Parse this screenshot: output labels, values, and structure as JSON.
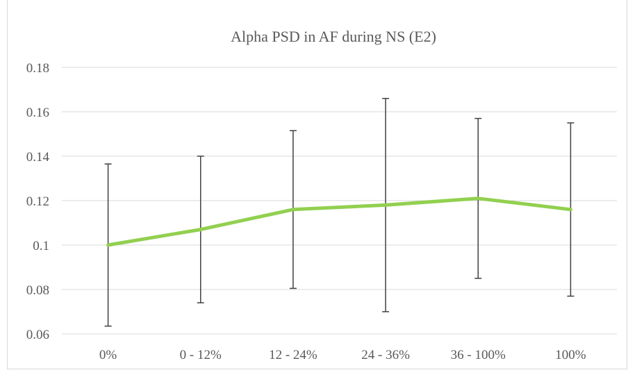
{
  "chart_data": {
    "type": "line",
    "title": "Alpha PSD in AF during NS (E2)",
    "xlabel": "",
    "ylabel": "",
    "categories": [
      "0%",
      "0 - 12%",
      "12 - 24%",
      "24 - 36%",
      "36 - 100%",
      "100%"
    ],
    "series": [
      {
        "values": [
          0.1,
          0.107,
          0.116,
          0.118,
          0.121,
          0.116
        ],
        "error_low": [
          0.0635,
          0.074,
          0.0805,
          0.07,
          0.085,
          0.077
        ],
        "error_high": [
          0.1365,
          0.14,
          0.1515,
          0.166,
          0.157,
          0.155
        ]
      }
    ],
    "ylim": [
      0.06,
      0.18
    ],
    "yticks": [
      0.06,
      0.08,
      0.1,
      0.12,
      0.14,
      0.16,
      0.18
    ],
    "ytick_labels": [
      "0.06",
      "0.08",
      "0.1",
      "0.12",
      "0.14",
      "0.16",
      "0.18"
    ],
    "grid": true,
    "legend": "none",
    "line_color": "#92d050",
    "error_bar_color": "#404040",
    "grid_color": "#d9d9d9",
    "text_color": "#595959"
  }
}
